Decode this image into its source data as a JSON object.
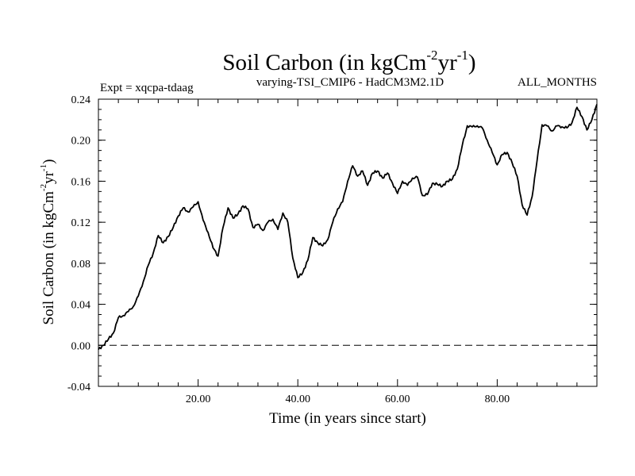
{
  "chart_data": {
    "type": "line",
    "title": {
      "main": "Soil Carbon (in kgCm",
      "sup1": "-2",
      "mid": "yr",
      "sup2": "-1",
      "end": ")"
    },
    "subtitle_left": "Expt = xqcpa-tdaag",
    "subtitle_center": "varying-TSI_CMIP6 - HadCM3M2.1D",
    "subtitle_right": "ALL_MONTHS",
    "xlabel": "Time (in years since start)",
    "ylabel": {
      "main": "Soil Carbon (in kgCm",
      "sup1": "-2",
      "mid": "yr",
      "sup2": "-1",
      "end": ")"
    },
    "xlim": [
      0,
      100
    ],
    "ylim": [
      -0.04,
      0.24
    ],
    "x_ticks": [
      20,
      40,
      60,
      80
    ],
    "x_tick_labels": [
      "20.00",
      "40.00",
      "60.00",
      "80.00"
    ],
    "y_ticks": [
      -0.04,
      0.0,
      0.04,
      0.08,
      0.12,
      0.16,
      0.2,
      0.24
    ],
    "y_tick_labels": [
      "-0.04",
      "0.00",
      "0.04",
      "0.08",
      "0.12",
      "0.16",
      "0.20",
      "0.24"
    ],
    "reference_line": {
      "y": 0.0,
      "style": "dashed"
    },
    "series": [
      {
        "name": "Soil Carbon",
        "x": [
          0,
          1,
          2,
          3,
          4,
          5,
          6,
          7,
          8,
          9,
          10,
          11,
          12,
          13,
          14,
          15,
          16,
          17,
          18,
          19,
          20,
          21,
          22,
          23,
          24,
          25,
          26,
          27,
          28,
          29,
          30,
          31,
          32,
          33,
          34,
          35,
          36,
          37,
          38,
          39,
          40,
          41,
          42,
          43,
          44,
          45,
          46,
          47,
          48,
          49,
          50,
          51,
          52,
          53,
          54,
          55,
          56,
          57,
          58,
          59,
          60,
          61,
          62,
          63,
          64,
          65,
          66,
          67,
          68,
          69,
          70,
          71,
          72,
          73,
          74,
          75,
          76,
          77,
          78,
          79,
          80,
          81,
          82,
          83,
          84,
          85,
          86,
          87,
          88,
          89,
          90,
          91,
          92,
          93,
          94,
          95,
          96,
          97,
          98,
          99,
          100
        ],
        "values": [
          -0.004,
          0.0,
          0.006,
          0.012,
          0.027,
          0.029,
          0.033,
          0.038,
          0.048,
          0.062,
          0.078,
          0.09,
          0.107,
          0.1,
          0.106,
          0.115,
          0.126,
          0.134,
          0.13,
          0.135,
          0.14,
          0.122,
          0.11,
          0.095,
          0.087,
          0.115,
          0.134,
          0.124,
          0.128,
          0.136,
          0.133,
          0.115,
          0.118,
          0.112,
          0.12,
          0.123,
          0.113,
          0.129,
          0.12,
          0.085,
          0.066,
          0.071,
          0.083,
          0.105,
          0.1,
          0.097,
          0.103,
          0.12,
          0.133,
          0.14,
          0.16,
          0.175,
          0.165,
          0.17,
          0.156,
          0.168,
          0.17,
          0.163,
          0.168,
          0.158,
          0.148,
          0.16,
          0.156,
          0.163,
          0.164,
          0.146,
          0.147,
          0.158,
          0.157,
          0.155,
          0.16,
          0.162,
          0.172,
          0.195,
          0.214,
          0.213,
          0.214,
          0.212,
          0.2,
          0.188,
          0.176,
          0.186,
          0.188,
          0.178,
          0.165,
          0.137,
          0.127,
          0.145,
          0.18,
          0.215,
          0.214,
          0.209,
          0.214,
          0.213,
          0.212,
          0.217,
          0.232,
          0.223,
          0.21,
          0.22,
          0.235
        ]
      }
    ]
  }
}
